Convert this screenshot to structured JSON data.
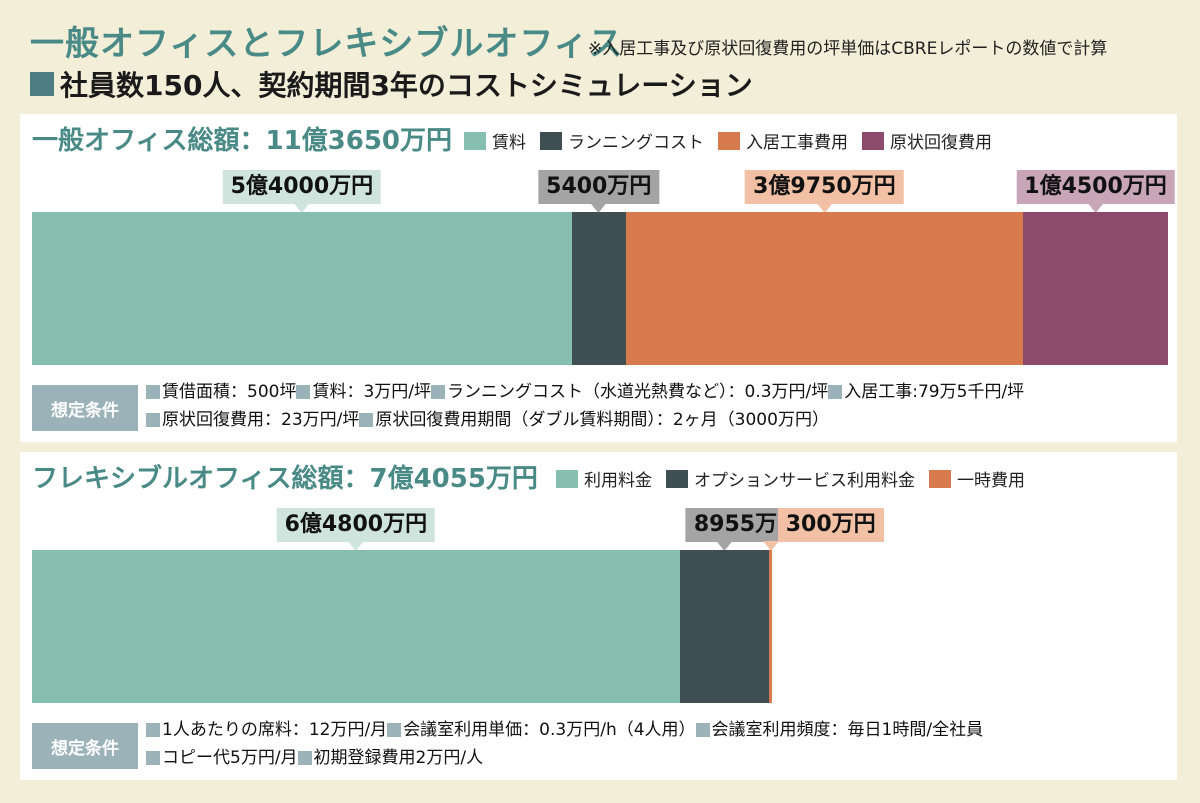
{
  "title": "一般オフィスとフレキシブルオフィス",
  "note": "※入居工事及び原状回復費用の坪単価はCBREレポートの数値で計算",
  "subtitle": "社員数150人、契約期間3年のコストシミュレーション",
  "conditions_label": "想定条件",
  "colors": {
    "teal": "#86bfb0",
    "dark": "#404f53",
    "orange": "#d77b4f",
    "plum": "#8c4a6d",
    "tag_teal": "#cfe4dd",
    "tag_gray": "#a4a4a4",
    "tag_orange": "#f2c0a4",
    "tag_plum": "#c9a5b8"
  },
  "chart_data": [
    {
      "type": "bar",
      "title": "一般オフィス総額：11億3650万円",
      "total": 113650,
      "series": [
        {
          "name": "賃料",
          "value": 54000,
          "label": "5億4000万円"
        },
        {
          "name": "ランニングコスト",
          "value": 5400,
          "label": "5400万円"
        },
        {
          "name": "入居工事費用",
          "value": 39750,
          "label": "3億9750万円"
        },
        {
          "name": "原状回復費用",
          "value": 14500,
          "label": "1億4500万円"
        }
      ],
      "conditions": [
        [
          "賃借面積：500坪",
          "賃料：3万円/坪",
          "ランニングコスト（水道光熱費など）：0.3万円/坪",
          "入居工事:79万5千円/坪"
        ],
        [
          "原状回復費用：23万円/坪",
          "原状回復費用期間（ダブル賃料期間）：2ヶ月（3000万円）"
        ]
      ]
    },
    {
      "type": "bar",
      "title": "フレキシブルオフィス総額：7億4055万円",
      "total": 74055,
      "series": [
        {
          "name": "利用料金",
          "value": 64800,
          "label": "6億4800万円"
        },
        {
          "name": "オプションサービス利用料金",
          "value": 8955,
          "label": "8955万円"
        },
        {
          "name": "一時費用",
          "value": 300,
          "label": "300万円"
        }
      ],
      "conditions": [
        [
          "1人あたりの席料：12万円/月",
          "会議室利用単価：0.3万円/h（4人用）",
          "会議室利用頻度：毎日1時間/全社員"
        ],
        [
          "コピー代5万円/月",
          "初期登録費用2万円/人"
        ]
      ]
    }
  ]
}
